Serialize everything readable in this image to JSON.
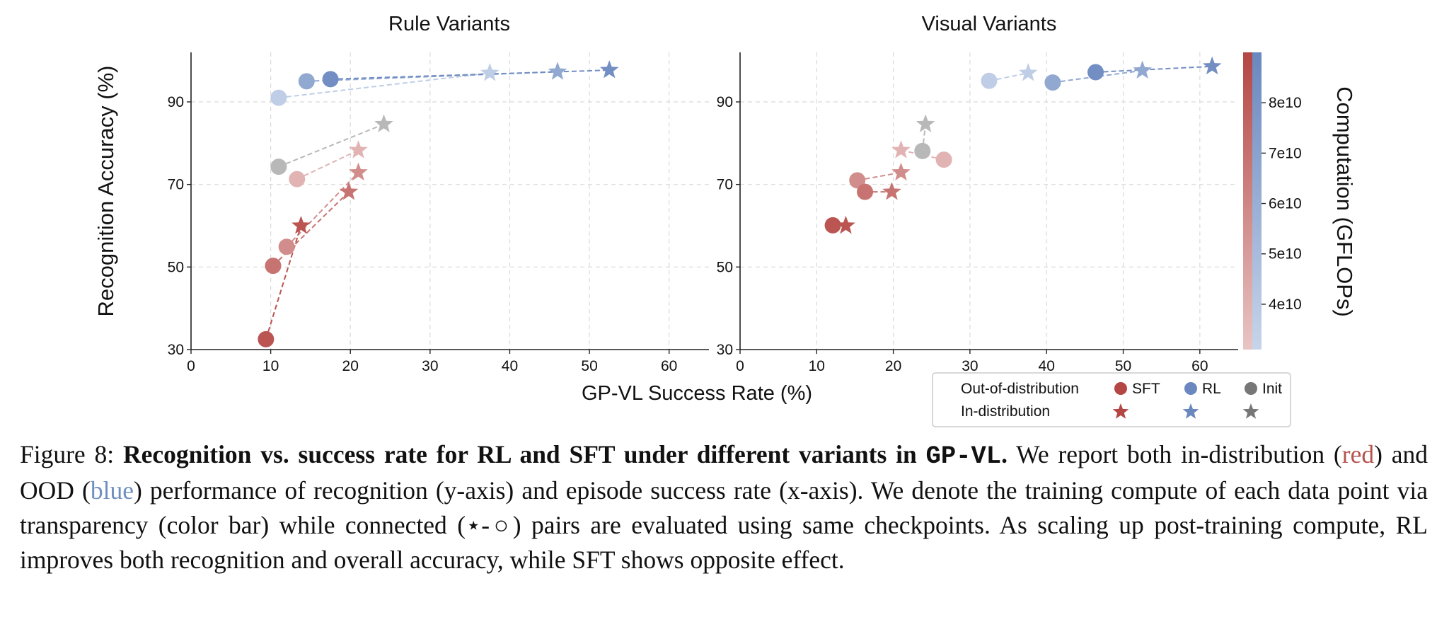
{
  "chart_data": [
    {
      "type": "scatter",
      "title": "Rule Variants",
      "xlabel": "GP-VL Success Rate (%)",
      "ylabel": "Recognition Accuracy (%)",
      "xlim": [
        0,
        65
      ],
      "ylim": [
        30,
        102
      ],
      "xticks": [
        0,
        10,
        20,
        30,
        40,
        50,
        60
      ],
      "yticks": [
        30,
        50,
        70,
        90
      ],
      "grid": true,
      "pairs": [
        {
          "method": "RL",
          "compute": 36000000000.0,
          "ood": [
            11.0,
            91.0
          ],
          "id": [
            37.5,
            97.0
          ]
        },
        {
          "method": "RL",
          "compute": 65000000000.0,
          "ood": [
            14.5,
            95.0
          ],
          "id": [
            46.0,
            97.3
          ]
        },
        {
          "method": "RL",
          "compute": 85000000000.0,
          "ood": [
            17.5,
            95.5
          ],
          "id": [
            52.5,
            97.7
          ]
        },
        {
          "method": "Init",
          "compute": 0,
          "ood": [
            11.0,
            74.3
          ],
          "id": [
            24.2,
            84.6
          ]
        },
        {
          "method": "SFT",
          "compute": 39000000000.0,
          "ood": [
            13.3,
            71.3
          ],
          "id": [
            21.0,
            78.3
          ]
        },
        {
          "method": "SFT",
          "compute": 57000000000.0,
          "ood": [
            12.0,
            54.9
          ],
          "id": [
            21.0,
            72.9
          ]
        },
        {
          "method": "SFT",
          "compute": 69000000000.0,
          "ood": [
            10.3,
            50.3
          ],
          "id": [
            19.8,
            68.2
          ]
        },
        {
          "method": "SFT",
          "compute": 83000000000.0,
          "ood": [
            9.4,
            32.5
          ],
          "id": [
            13.8,
            60.0
          ]
        }
      ]
    },
    {
      "type": "scatter",
      "title": "Visual Variants",
      "xlabel": "GP-VL Success Rate (%)",
      "ylabel": "",
      "xlim": [
        0,
        65
      ],
      "ylim": [
        30,
        102
      ],
      "xticks": [
        0,
        10,
        20,
        30,
        40,
        50,
        60
      ],
      "yticks": [
        30,
        50,
        70,
        90
      ],
      "grid": true,
      "pairs": [
        {
          "method": "RL",
          "compute": 36000000000.0,
          "ood": [
            32.5,
            95.1
          ],
          "id": [
            37.6,
            97.0
          ]
        },
        {
          "method": "RL",
          "compute": 65000000000.0,
          "ood": [
            40.8,
            94.7
          ],
          "id": [
            52.5,
            97.6
          ]
        },
        {
          "method": "RL",
          "compute": 85000000000.0,
          "ood": [
            46.4,
            97.2
          ],
          "id": [
            61.6,
            98.6
          ]
        },
        {
          "method": "Init",
          "compute": 0,
          "ood": [
            23.8,
            78.1
          ],
          "id": [
            24.2,
            84.6
          ]
        },
        {
          "method": "SFT",
          "compute": 39000000000.0,
          "ood": [
            26.6,
            76.0
          ],
          "id": [
            21.0,
            78.3
          ]
        },
        {
          "method": "SFT",
          "compute": 57000000000.0,
          "ood": [
            15.3,
            71.0
          ],
          "id": [
            21.0,
            72.9
          ]
        },
        {
          "method": "SFT",
          "compute": 69000000000.0,
          "ood": [
            16.3,
            68.2
          ],
          "id": [
            19.8,
            68.2
          ]
        },
        {
          "method": "SFT",
          "compute": 83000000000.0,
          "ood": [
            12.1,
            60.1
          ],
          "id": [
            13.8,
            60.0
          ]
        }
      ]
    }
  ],
  "colorbar": {
    "label": "Computation (GFLOPs)",
    "ticks": [
      {
        "label": "8e10",
        "value": 80000000000.0
      },
      {
        "label": "7e10",
        "value": 70000000000.0
      },
      {
        "label": "6e10",
        "value": 60000000000.0
      },
      {
        "label": "5e10",
        "value": 50000000000.0
      },
      {
        "label": "4e10",
        "value": 40000000000.0
      }
    ],
    "range": [
      31000000000.0,
      90000000000.0
    ],
    "sft_color_low": "#e8c5c4",
    "sft_color_high": "#b44643",
    "rl_color_low": "#c7d4ea",
    "rl_color_high": "#6a88bf"
  },
  "legend": {
    "placement": "bottom-right",
    "row1_label": "Out-of-distribution",
    "row2_label": "In-distribution",
    "sft_label": "SFT",
    "rl_label": "RL",
    "init_label": "Init",
    "sft_color": "#b44643",
    "rl_color": "#6a88bf",
    "init_color": "#777777"
  },
  "colors": {
    "init": "#b8b8b8"
  },
  "caption": {
    "figure_label": "Figure 8:",
    "bold_lead": "Recognition vs.  success rate for RL and SFT under different variants in",
    "bold_code": "GP-VL",
    "bold_end": ".",
    "text_1": "We report both in-distribution (",
    "red_word": "red",
    "text_2": ") and OOD (",
    "blue_word": "blue",
    "text_3": ") performance of recognition (y-axis) and episode success rate (x-axis).  We denote the training compute of each data point via transparency (color bar) while connected (⋆-○) pairs are evaluated using same checkpoints.  As scaling up post-training compute, RL improves both recognition and overall accuracy, while SFT shows opposite effect."
  }
}
